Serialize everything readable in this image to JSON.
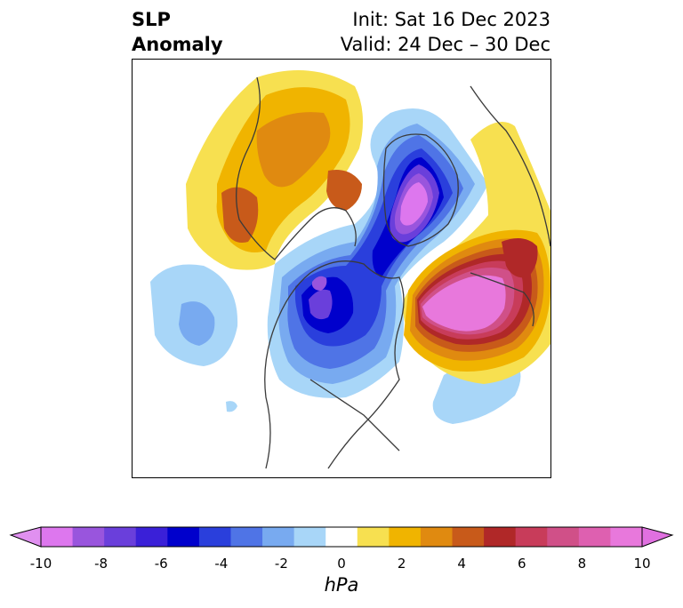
{
  "header": {
    "title_line1": "SLP",
    "title_line2": "Anomaly",
    "init_text": "Init: Sat 16 Dec 2023",
    "valid_text": "Valid: 24 Dec – 30 Dec"
  },
  "colorbar": {
    "unit": "hPa",
    "tick_labels": [
      "-10",
      "-8",
      "-6",
      "-4",
      "-2",
      "0",
      "2",
      "4",
      "6",
      "8",
      "10"
    ],
    "levels": [
      -10,
      -9,
      -8,
      -7,
      -6,
      -5,
      -4,
      -3,
      -2,
      -1,
      1,
      2,
      3,
      4,
      5,
      6,
      7,
      8,
      9,
      10
    ],
    "colors": [
      "#dd77ee",
      "#9955dd",
      "#6a3fdb",
      "#3a20d8",
      "#0000cc",
      "#2a3fdc",
      "#4f74e6",
      "#78aaf0",
      "#a8d6f8",
      "#ffffff",
      "#f7e050",
      "#f0b400",
      "#e08a10",
      "#c85a1a",
      "#b02828",
      "#c83c5a",
      "#d05088",
      "#de60b0",
      "#e878dc"
    ],
    "under_color": "#e090f0",
    "over_color": "#e070e0"
  },
  "map": {
    "anomaly_centers": [
      {
        "region": "Greenland / Arctic",
        "sign": "negative",
        "peak_hpa": -10
      },
      {
        "region": "Northeast Pacific / Gulf of Alaska",
        "sign": "negative",
        "peak_hpa": -8
      },
      {
        "region": "Eastern Siberia / Arctic Ocean",
        "sign": "negative",
        "peak_hpa": -6
      },
      {
        "region": "North Atlantic / Europe",
        "sign": "positive",
        "peak_hpa": 10
      },
      {
        "region": "Siberia / Central Asia",
        "sign": "positive",
        "peak_hpa": 6
      }
    ]
  }
}
